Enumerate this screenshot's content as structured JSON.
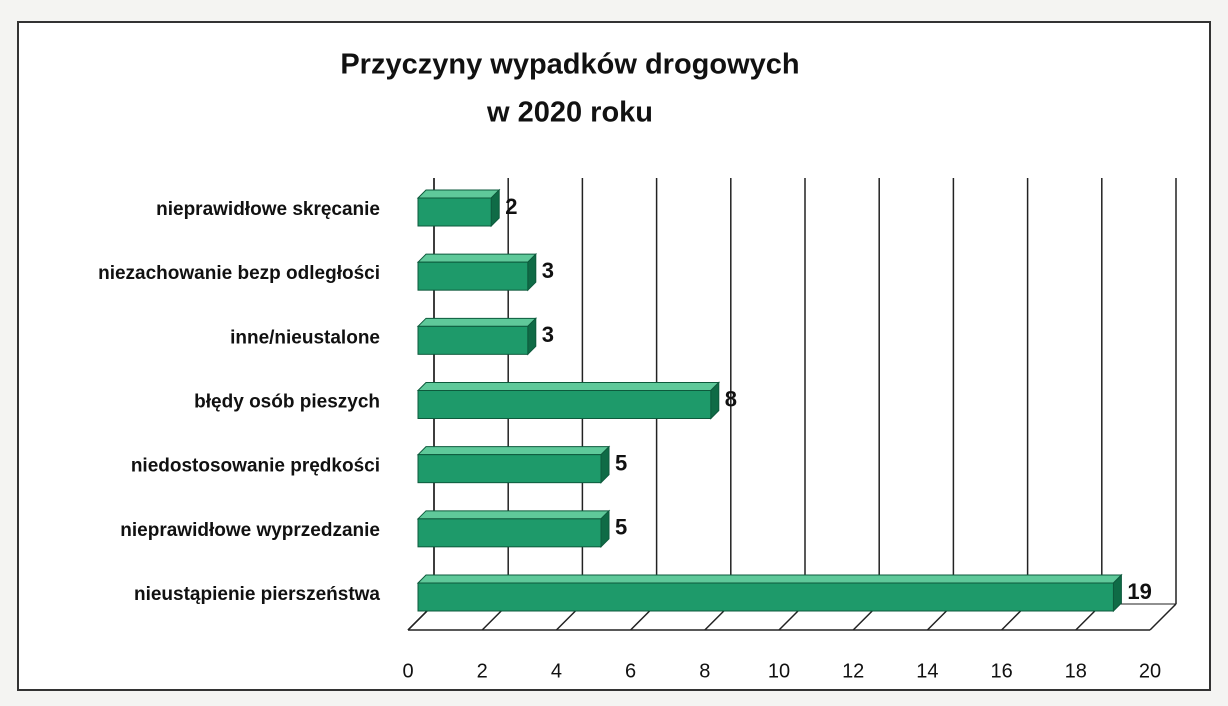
{
  "chart_data": {
    "type": "bar",
    "orientation": "horizontal",
    "title": [
      "Przyczyny wypadków drogowych",
      "w 2020 roku"
    ],
    "categories": [
      "nieprawidłowe skręcanie",
      "niezachowanie bezp odległości",
      "inne/nieustalone",
      "błędy osób pieszych",
      "niedostosowanie prędkości",
      "nieprawidłowe wyprzedzanie",
      "nieustąpienie pierszeństwa"
    ],
    "values": [
      2,
      3,
      3,
      8,
      5,
      5,
      19
    ],
    "color": "#1e9a6a",
    "xlim": [
      0,
      20
    ],
    "xticks": [
      0,
      2,
      4,
      6,
      8,
      10,
      12,
      14,
      16,
      18,
      20
    ],
    "grid": true
  }
}
